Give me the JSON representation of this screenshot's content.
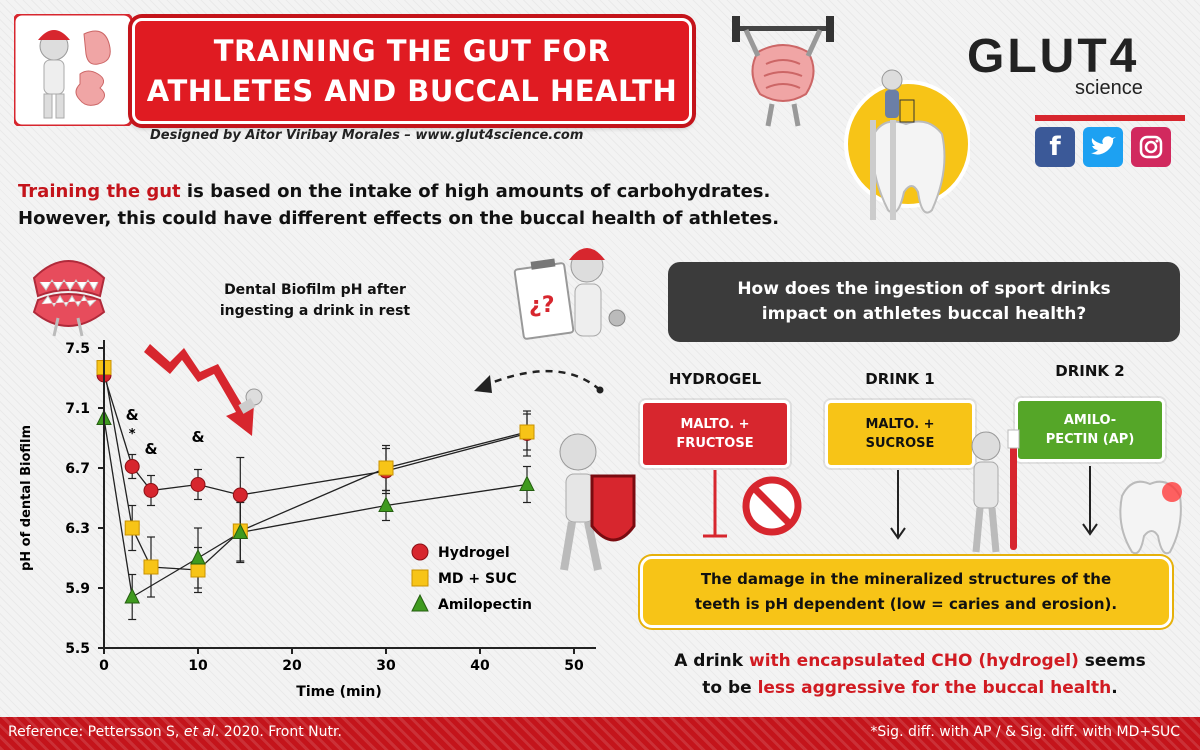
{
  "header": {
    "title_line1": "TRAINING THE GUT FOR",
    "title_line2": "ATHLETES AND BUCCAL HEALTH",
    "designer": "Designed by Aitor Viribay Morales – www.glut4science.com"
  },
  "brand": {
    "logo_text": "GLUT4",
    "logo_sub": "science",
    "social": [
      "facebook-icon",
      "twitter-icon",
      "instagram-icon"
    ]
  },
  "intro": {
    "highlight": "Training the gut",
    "line1_rest": " is based on the intake of high amounts of carbohydrates.",
    "line2": "However, this could have different effects on the buccal health of athletes."
  },
  "chart_title": {
    "line1": "Dental Biofilm pH after",
    "line2": "ingesting a drink in rest"
  },
  "chart_data": {
    "type": "line",
    "xlabel": "Time (min)",
    "ylabel": "pH of dental Biofilm",
    "xlim": [
      0,
      50
    ],
    "ylim": [
      5.5,
      7.5
    ],
    "xticks": [
      0,
      10,
      20,
      30,
      40,
      50
    ],
    "yticks": [
      5.5,
      5.9,
      6.3,
      6.7,
      7.1,
      7.5
    ],
    "x": [
      0,
      3,
      5,
      10,
      14.5,
      30,
      45
    ],
    "series": [
      {
        "name": "Hydrogel",
        "marker": "circle",
        "color": "#d7262e",
        "values": [
          7.32,
          6.71,
          6.55,
          6.59,
          6.52,
          6.68,
          6.93
        ],
        "errors": [
          0.0,
          0.08,
          0.1,
          0.1,
          0.25,
          0.15,
          0.15
        ]
      },
      {
        "name": "MD + SUC",
        "marker": "square",
        "color": "#f7c417",
        "values": [
          7.37,
          6.3,
          6.04,
          6.02,
          6.28,
          6.7,
          6.94
        ],
        "errors": [
          0.0,
          0.15,
          0.2,
          0.15,
          0.2,
          0.15,
          0.12
        ]
      },
      {
        "name": "Amilopectin",
        "marker": "triangle",
        "color": "#3f9a1f",
        "values": [
          7.03,
          5.84,
          null,
          6.1,
          6.27,
          6.45,
          6.59
        ],
        "errors": [
          0.0,
          0.15,
          null,
          0.2,
          0.2,
          0.1,
          0.12
        ]
      }
    ],
    "annotations": [
      {
        "x": 3,
        "label": "&"
      },
      {
        "x": 3,
        "label": "*"
      },
      {
        "x": 5,
        "label": "&"
      },
      {
        "x": 10,
        "label": "&"
      }
    ],
    "legend_position": "bottom-right"
  },
  "question": {
    "line1": "How does the ingestion of sport drinks",
    "line2": "impact on athletes buccal health?"
  },
  "drinks": [
    {
      "heading": "HYDROGEL",
      "line1": "MALTO. +",
      "line2": "FRUCTOSE",
      "color": "#d7262e"
    },
    {
      "heading": "DRINK 1",
      "line1": "MALTO. +",
      "line2": "SUCROSE",
      "color": "#f7c417"
    },
    {
      "heading": "DRINK 2",
      "line1": "AMILO-",
      "line2": "PECTIN (AP)",
      "color": "#55a628"
    }
  ],
  "damage": {
    "line1": "The damage in the mineralized structures of the",
    "line2": "teeth is pH dependent (low = caries and erosion)."
  },
  "conclusion": {
    "p1": "A drink ",
    "p2": "with encapsulated CHO (hydrogel)",
    "p3": " seems",
    "p4": "to be ",
    "p5": "less aggressive for the buccal health",
    "p6": "."
  },
  "clipboard_text": "¿?",
  "footer": {
    "ref_prefix": "Reference: Pettersson S, ",
    "ref_italic": "et al",
    "ref_suffix": ". 2020. Front Nutr.",
    "sig": "*Sig. diff. with AP / & Sig. diff. with MD+SUC"
  }
}
